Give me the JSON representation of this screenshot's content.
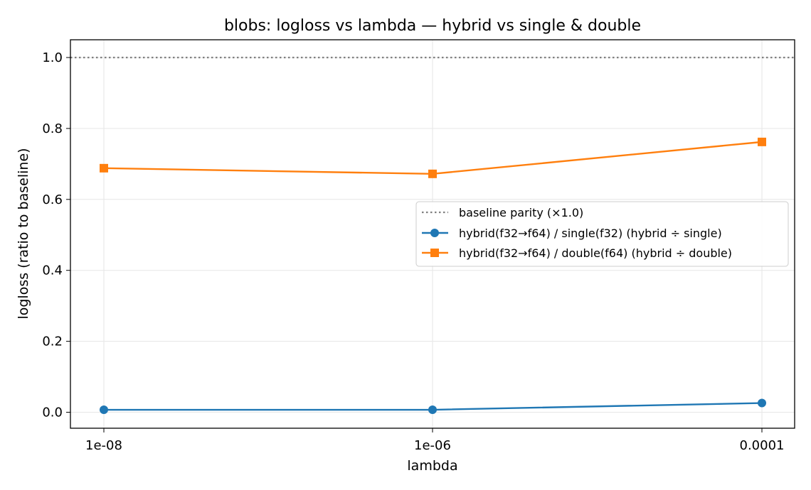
{
  "chart_data": {
    "type": "line",
    "title": "blobs: logloss vs lambda — hybrid vs single & double",
    "xlabel": "lambda",
    "ylabel": "logloss (ratio to baseline)",
    "categories": [
      "1e-08",
      "1e-06",
      "0.0001"
    ],
    "x_scale": "log",
    "yticks": [
      "0.0",
      "0.2",
      "0.4",
      "0.6",
      "0.8",
      "1.0"
    ],
    "ylim": [
      -0.045,
      1.05
    ],
    "grid": true,
    "legend_position": "center-right",
    "baseline": {
      "name": "baseline parity (×1.0)",
      "value": 1.0,
      "color": "#808080",
      "style": "dotted"
    },
    "series": [
      {
        "name": "hybrid(f32→f64) / single(f32)  (hybrid ÷ single)",
        "values": [
          0.007,
          0.007,
          0.026
        ],
        "color": "#1f77b4",
        "marker": "circle"
      },
      {
        "name": "hybrid(f32→f64) / double(f64)  (hybrid ÷ double)",
        "values": [
          0.688,
          0.672,
          0.762
        ],
        "color": "#ff7f0e",
        "marker": "square"
      }
    ]
  }
}
